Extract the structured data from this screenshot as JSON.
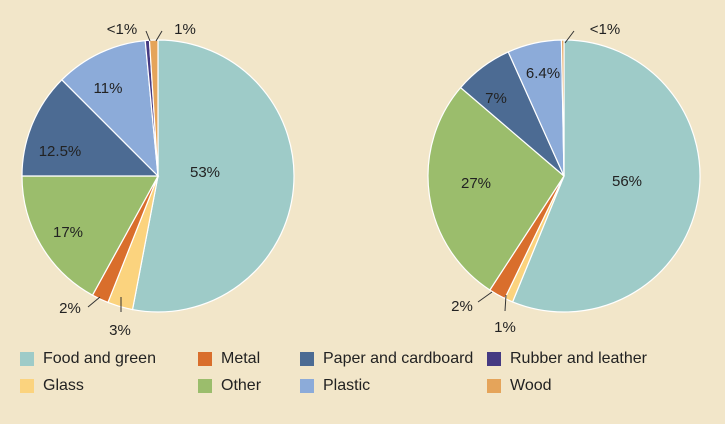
{
  "colors": {
    "Food and green": "#9ecbc8",
    "Metal": "#d96e2c",
    "Paper and cardboard": "#4c6b93",
    "Rubber and leather": "#453a82",
    "Glass": "#fbd37e",
    "Other": "#9bbd6c",
    "Plastic": "#8cabd9",
    "Wood": "#e5a45a"
  },
  "chart_data": [
    {
      "type": "pie",
      "slices": [
        {
          "category": "Food and green",
          "value": 53,
          "label": "53%"
        },
        {
          "category": "Glass",
          "value": 3,
          "label": "3%"
        },
        {
          "category": "Metal",
          "value": 2,
          "label": "2%"
        },
        {
          "category": "Other",
          "value": 17,
          "label": "17%"
        },
        {
          "category": "Paper and cardboard",
          "value": 12.5,
          "label": "12.5%"
        },
        {
          "category": "Plastic",
          "value": 11,
          "label": "11%"
        },
        {
          "category": "Rubber and leather",
          "value": 0.5,
          "label": "<1%"
        },
        {
          "category": "Wood",
          "value": 1,
          "label": "1%"
        }
      ]
    },
    {
      "type": "pie",
      "slices": [
        {
          "category": "Food and green",
          "value": 56,
          "label": "56%"
        },
        {
          "category": "Glass",
          "value": 1,
          "label": "1%"
        },
        {
          "category": "Metal",
          "value": 2,
          "label": "2%"
        },
        {
          "category": "Other",
          "value": 27,
          "label": "27%"
        },
        {
          "category": "Paper and cardboard",
          "value": 7,
          "label": "7%"
        },
        {
          "category": "Plastic",
          "value": 6.4,
          "label": "6.4%"
        },
        {
          "category": "Wood",
          "value": 0.3,
          "label": "<1%"
        }
      ]
    }
  ],
  "legend": [
    {
      "label": "Food and green",
      "category": "Food and green"
    },
    {
      "label": "Metal",
      "category": "Metal"
    },
    {
      "label": "Paper and cardboard",
      "category": "Paper and cardboard"
    },
    {
      "label": "Rubber and leather",
      "category": "Rubber and leather"
    },
    {
      "label": "Glass",
      "category": "Glass"
    },
    {
      "label": "Other",
      "category": "Other"
    },
    {
      "label": "Plastic",
      "category": "Plastic"
    },
    {
      "label": "Wood",
      "category": "Wood"
    }
  ]
}
